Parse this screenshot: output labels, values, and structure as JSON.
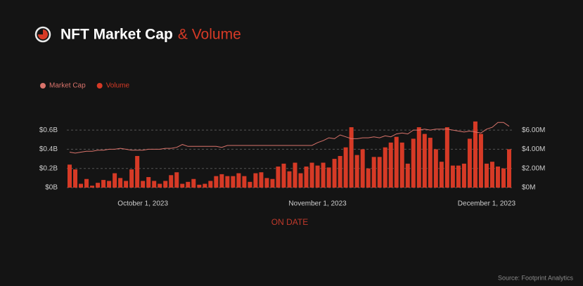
{
  "chart_data": {
    "type": "combo",
    "title": "NFT Market Cap",
    "title_suffix": "& Volume",
    "x_label": "ON DATE",
    "source": "Source: Footprint Analytics",
    "categories": [
      "2023-09-18",
      "2023-09-19",
      "2023-09-20",
      "2023-09-21",
      "2023-09-22",
      "2023-09-23",
      "2023-09-24",
      "2023-09-25",
      "2023-09-26",
      "2023-09-27",
      "2023-09-28",
      "2023-09-29",
      "2023-09-30",
      "2023-10-01",
      "2023-10-02",
      "2023-10-03",
      "2023-10-04",
      "2023-10-05",
      "2023-10-06",
      "2023-10-07",
      "2023-10-08",
      "2023-10-09",
      "2023-10-10",
      "2023-10-11",
      "2023-10-12",
      "2023-10-13",
      "2023-10-14",
      "2023-10-15",
      "2023-10-16",
      "2023-10-17",
      "2023-10-18",
      "2023-10-19",
      "2023-10-20",
      "2023-10-21",
      "2023-10-22",
      "2023-10-23",
      "2023-10-24",
      "2023-10-25",
      "2023-10-26",
      "2023-10-27",
      "2023-10-28",
      "2023-10-29",
      "2023-10-30",
      "2023-10-31",
      "2023-11-01",
      "2023-11-02",
      "2023-11-03",
      "2023-11-04",
      "2023-11-05",
      "2023-11-06",
      "2023-11-07",
      "2023-11-08",
      "2023-11-09",
      "2023-11-10",
      "2023-11-11",
      "2023-11-12",
      "2023-11-13",
      "2023-11-14",
      "2023-11-15",
      "2023-11-16",
      "2023-11-17",
      "2023-11-18",
      "2023-11-19",
      "2023-11-20",
      "2023-11-21",
      "2023-11-22",
      "2023-11-23",
      "2023-11-24",
      "2023-11-25",
      "2023-11-26",
      "2023-11-27",
      "2023-11-28",
      "2023-11-29",
      "2023-11-30",
      "2023-12-01",
      "2023-12-02",
      "2023-12-03",
      "2023-12-04",
      "2023-12-05"
    ],
    "xticks": [
      {
        "value": "2023-10-01",
        "label": "October 1, 2023"
      },
      {
        "value": "2023-11-01",
        "label": "November 1, 2023"
      },
      {
        "value": "2023-12-01",
        "label": "December 1, 2023"
      }
    ],
    "series": [
      {
        "name": "Market Cap",
        "type": "line",
        "color": "#d9736b",
        "axis": "y",
        "values": [
          0.37,
          0.36,
          0.37,
          0.38,
          0.38,
          0.39,
          0.39,
          0.4,
          0.4,
          0.41,
          0.4,
          0.39,
          0.39,
          0.39,
          0.4,
          0.4,
          0.4,
          0.41,
          0.41,
          0.42,
          0.45,
          0.43,
          0.43,
          0.43,
          0.43,
          0.43,
          0.43,
          0.42,
          0.44,
          0.44,
          0.44,
          0.44,
          0.44,
          0.44,
          0.44,
          0.44,
          0.44,
          0.44,
          0.44,
          0.44,
          0.44,
          0.44,
          0.44,
          0.44,
          0.47,
          0.49,
          0.52,
          0.51,
          0.55,
          0.53,
          0.51,
          0.51,
          0.52,
          0.52,
          0.53,
          0.52,
          0.54,
          0.53,
          0.56,
          0.57,
          0.56,
          0.6,
          0.6,
          0.61,
          0.6,
          0.61,
          0.61,
          0.61,
          0.6,
          0.59,
          0.58,
          0.59,
          0.58,
          0.57,
          0.61,
          0.63,
          0.68,
          0.68,
          0.64
        ]
      },
      {
        "name": "Volume",
        "type": "bar",
        "color": "#d63a26",
        "axis": "y2",
        "values": [
          2.4,
          1.9,
          0.4,
          0.9,
          0.2,
          0.5,
          0.8,
          0.7,
          1.5,
          1.0,
          0.7,
          1.9,
          3.3,
          0.7,
          1.1,
          0.7,
          0.4,
          0.7,
          1.3,
          1.6,
          0.4,
          0.6,
          0.9,
          0.3,
          0.4,
          0.7,
          1.2,
          1.4,
          1.2,
          1.2,
          1.5,
          1.2,
          0.6,
          1.5,
          1.6,
          1.0,
          0.9,
          2.2,
          2.5,
          1.7,
          2.6,
          1.5,
          2.2,
          2.6,
          2.3,
          2.6,
          2.1,
          3.0,
          3.3,
          4.2,
          6.3,
          3.4,
          4.0,
          2.0,
          3.2,
          3.2,
          4.2,
          4.7,
          5.3,
          4.7,
          2.5,
          5.1,
          6.3,
          5.6,
          5.2,
          4.0,
          2.7,
          6.3,
          2.3,
          2.3,
          2.5,
          5.1,
          6.9,
          5.6,
          2.5,
          2.7,
          2.2,
          2.0,
          4.0
        ]
      }
    ],
    "ylim": [
      0,
      0.7
    ],
    "yticks": [
      {
        "value": 0,
        "label": "$0B"
      },
      {
        "value": 0.2,
        "label": "$0.2B"
      },
      {
        "value": 0.4,
        "label": "$0.4B"
      },
      {
        "value": 0.6,
        "label": "$0.6B"
      }
    ],
    "y2lim": [
      0,
      7
    ],
    "y2ticks": [
      {
        "value": 0,
        "label": "$0M"
      },
      {
        "value": 2,
        "label": "$2.00M"
      },
      {
        "value": 4,
        "label": "$4.00M"
      },
      {
        "value": 6,
        "label": "$6.00M"
      }
    ],
    "grid": true
  }
}
